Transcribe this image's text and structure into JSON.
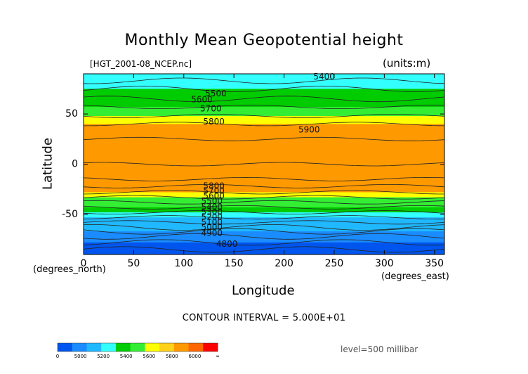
{
  "title": "Monthly Mean Geopotential height",
  "file_label": "[HGT_2001-08_NCEP.nc]",
  "units_label": "(units:m)",
  "contour_interval_text": "CONTOUR INTERVAL = 5.000E+01",
  "level_text": "level=500 millibar",
  "chart_data": {
    "type": "heatmap",
    "title": "Monthly Mean Geopotential height",
    "xlabel": "Longitude",
    "xunits": "(degrees_east)",
    "ylabel": "Latitude",
    "yunits": "(degrees_north)",
    "xlim": [
      0,
      360
    ],
    "ylim": [
      -90,
      90
    ],
    "xticks": [
      0,
      50,
      100,
      150,
      200,
      250,
      300,
      350
    ],
    "yticks": [
      -50,
      0,
      50
    ],
    "contour_interval": 50,
    "bands": [
      {
        "lat": 90,
        "value": 5420
      },
      {
        "lat": 83,
        "value": 5470
      },
      {
        "lat": 75,
        "value": 5520
      },
      {
        "lat": 65,
        "value": 5580
      },
      {
        "lat": 57,
        "value": 5640
      },
      {
        "lat": 48,
        "value": 5740
      },
      {
        "lat": 40,
        "value": 5820
      },
      {
        "lat": 25,
        "value": 5880
      },
      {
        "lat": 0,
        "value": 5880
      },
      {
        "lat": -15,
        "value": 5860
      },
      {
        "lat": -22,
        "value": 5810
      },
      {
        "lat": -28,
        "value": 5740
      },
      {
        "lat": -33,
        "value": 5670
      },
      {
        "lat": -38,
        "value": 5600
      },
      {
        "lat": -43,
        "value": 5520
      },
      {
        "lat": -48,
        "value": 5450
      },
      {
        "lat": -53,
        "value": 5380
      },
      {
        "lat": -58,
        "value": 5300
      },
      {
        "lat": -63,
        "value": 5200
      },
      {
        "lat": -67,
        "value": 5100
      },
      {
        "lat": -72,
        "value": 5000
      },
      {
        "lat": -78,
        "value": 4900
      },
      {
        "lat": -85,
        "value": 4830
      },
      {
        "lat": -90,
        "value": 4800
      }
    ],
    "contour_labels": [
      {
        "text": "5400",
        "lon": 240,
        "lat": 87
      },
      {
        "text": "5500",
        "lon": 132,
        "lat": 70
      },
      {
        "text": "5600",
        "lon": 118,
        "lat": 64
      },
      {
        "text": "5700",
        "lon": 127,
        "lat": 55
      },
      {
        "text": "5800",
        "lon": 130,
        "lat": 42
      },
      {
        "text": "5900",
        "lon": 225,
        "lat": 34
      },
      {
        "text": "5800",
        "lon": 130,
        "lat": -22
      },
      {
        "text": "5700",
        "lon": 130,
        "lat": -27
      },
      {
        "text": "5600",
        "lon": 130,
        "lat": -32
      },
      {
        "text": "5500",
        "lon": 128,
        "lat": -37
      },
      {
        "text": "5400",
        "lon": 128,
        "lat": -43
      },
      {
        "text": "5300",
        "lon": 128,
        "lat": -48
      },
      {
        "text": "5200",
        "lon": 128,
        "lat": -53
      },
      {
        "text": "5100",
        "lon": 128,
        "lat": -58
      },
      {
        "text": "5000",
        "lon": 128,
        "lat": -63
      },
      {
        "text": "4900",
        "lon": 128,
        "lat": -69
      },
      {
        "text": "4800",
        "lon": 143,
        "lat": -80
      }
    ],
    "colorbar": {
      "labels": [
        "0",
        "5000",
        "5200",
        "5400",
        "5600",
        "5800",
        "6000",
        "∞"
      ],
      "colors": [
        "#0055ee",
        "#1a8cff",
        "#20b8ff",
        "#33ffff",
        "#00cc00",
        "#33ee33",
        "#ffff00",
        "#ffd11a",
        "#ff9900",
        "#ff6600",
        "#ff0000"
      ]
    }
  }
}
